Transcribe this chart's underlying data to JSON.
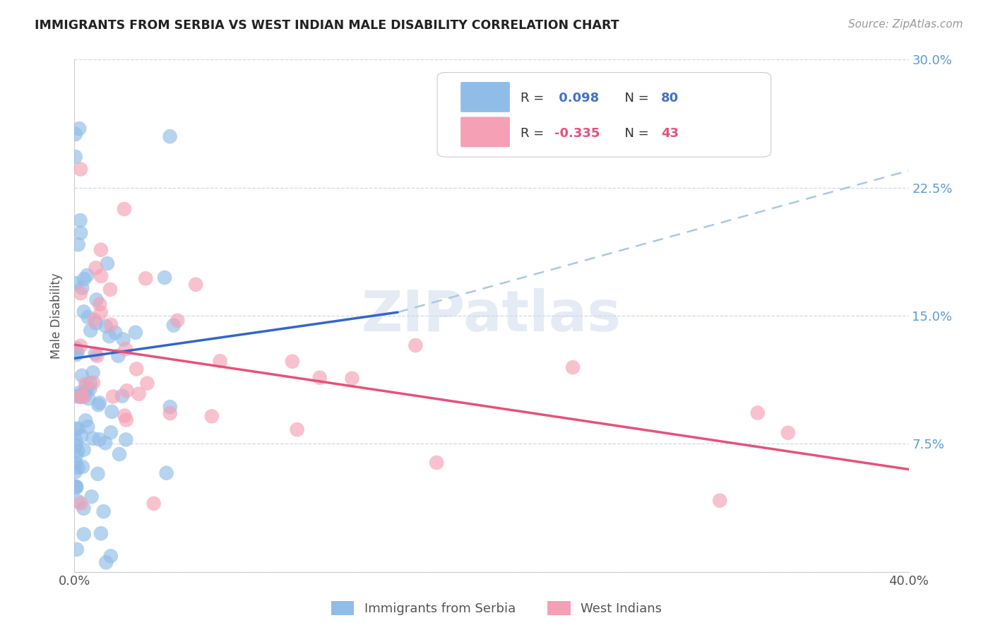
{
  "title": "IMMIGRANTS FROM SERBIA VS WEST INDIAN MALE DISABILITY CORRELATION CHART",
  "source": "Source: ZipAtlas.com",
  "ylabel": "Male Disability",
  "xlim": [
    0.0,
    0.4
  ],
  "ylim": [
    0.0,
    0.3
  ],
  "yticks": [
    0.0,
    0.075,
    0.15,
    0.225,
    0.3
  ],
  "ytick_labels": [
    "",
    "7.5%",
    "15.0%",
    "22.5%",
    "30.0%"
  ],
  "xticks": [
    0.0,
    0.1,
    0.2,
    0.3,
    0.4
  ],
  "xtick_labels": [
    "0.0%",
    "",
    "",
    "",
    "40.0%"
  ],
  "serbia_color": "#90bce8",
  "west_indian_color": "#f5a0b5",
  "serbia_line_color": "#3366cc",
  "west_indian_line_color": "#e8507a",
  "dashed_line_color": "#aac8e8",
  "legend_box_color": "#a8c4e8",
  "legend_pink_color": "#f5b8c8",
  "legend_text_color": "#4472c4",
  "watermark": "ZIPatlas",
  "background_color": "#ffffff",
  "grid_color": "#d0d8e8",
  "serbia_R": 0.098,
  "serbia_N": 80,
  "west_indian_R": -0.335,
  "west_indian_N": 43,
  "serbia_line_x_start": 0.0,
  "serbia_line_x_end_solid": 0.155,
  "serbia_line_x_end_dashed": 0.4,
  "serbia_line_y_start": 0.125,
  "serbia_line_y_end_solid": 0.152,
  "serbia_line_y_end_dashed": 0.235,
  "wi_line_x_start": 0.0,
  "wi_line_x_end": 0.4,
  "wi_line_y_start": 0.133,
  "wi_line_y_end": 0.06
}
